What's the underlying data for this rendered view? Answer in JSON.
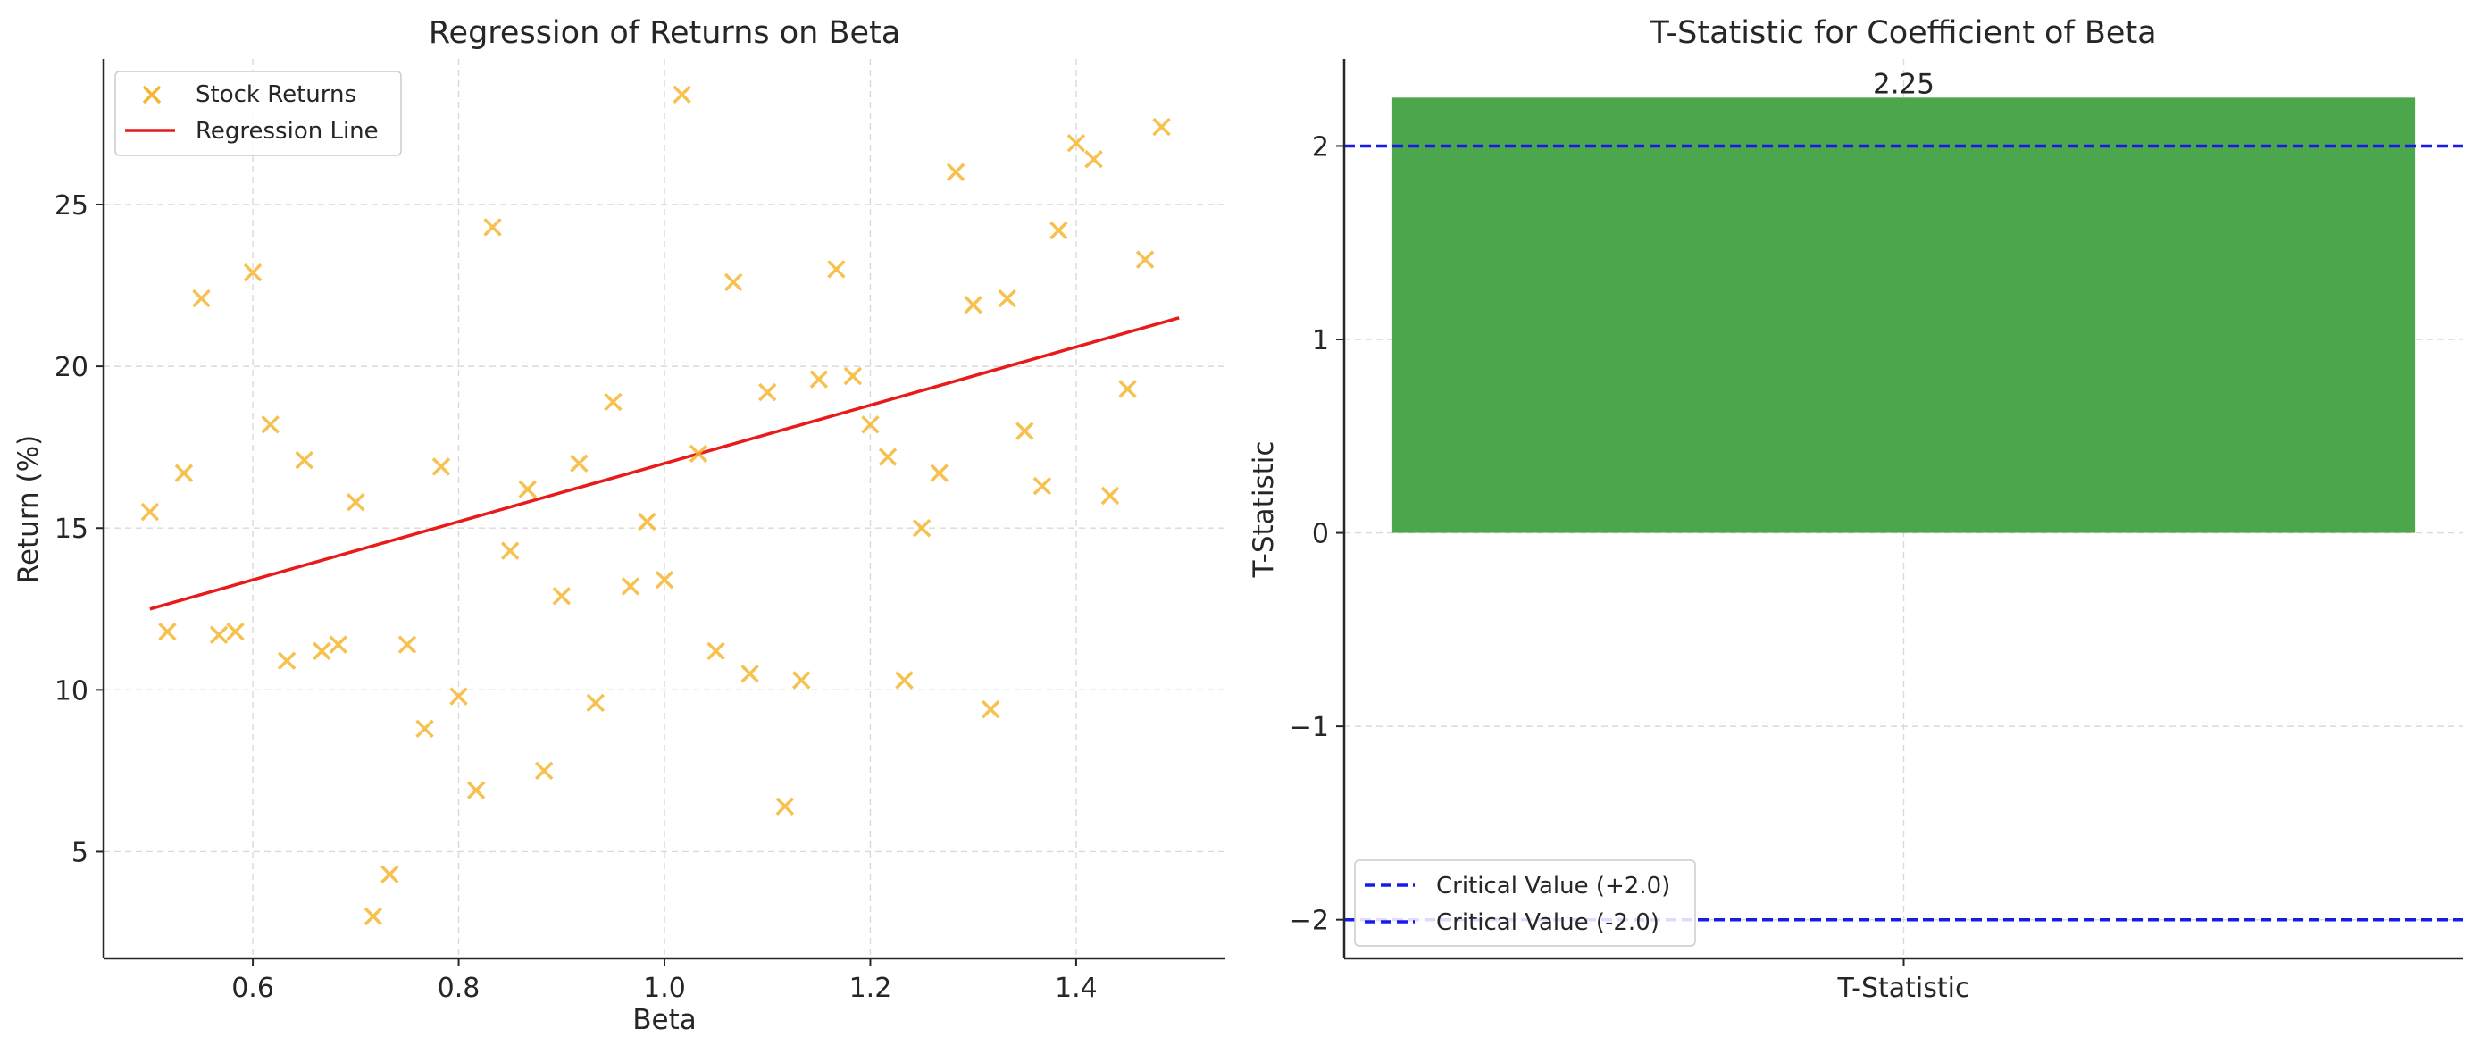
{
  "chart_data": [
    {
      "type": "scatter",
      "title": "Regression of Returns on Beta",
      "xlabel": "Beta",
      "ylabel": "Return (%)",
      "xlim": [
        0.455,
        1.545
      ],
      "ylim": [
        1.7,
        29.5
      ],
      "xticks": [
        0.6,
        0.8,
        1.0,
        1.2,
        1.4
      ],
      "xtick_labels": [
        "0.6",
        "0.8",
        "1.0",
        "1.2",
        "1.4"
      ],
      "yticks": [
        5,
        10,
        15,
        20,
        25
      ],
      "ytick_labels": [
        "5",
        "10",
        "15",
        "20",
        "25"
      ],
      "grid": true,
      "legend_position": "top-left",
      "series": [
        {
          "name": "Stock Returns",
          "kind": "scatter",
          "marker": "x",
          "color": "#f5b731",
          "points": [
            [
              0.5,
              15.5
            ],
            [
              0.517,
              11.8
            ],
            [
              0.533,
              16.7
            ],
            [
              0.55,
              22.1
            ],
            [
              0.567,
              11.7
            ],
            [
              0.583,
              11.8
            ],
            [
              0.6,
              22.9
            ],
            [
              0.617,
              18.2
            ],
            [
              0.633,
              10.9
            ],
            [
              0.65,
              17.1
            ],
            [
              0.667,
              11.2
            ],
            [
              0.683,
              11.4
            ],
            [
              0.7,
              15.8
            ],
            [
              0.717,
              3.0
            ],
            [
              0.733,
              4.3
            ],
            [
              0.75,
              11.4
            ],
            [
              0.767,
              8.8
            ],
            [
              0.783,
              16.9
            ],
            [
              0.8,
              9.8
            ],
            [
              0.817,
              6.9
            ],
            [
              0.833,
              24.3
            ],
            [
              0.85,
              14.3
            ],
            [
              0.867,
              16.2
            ],
            [
              0.883,
              7.5
            ],
            [
              0.9,
              12.9
            ],
            [
              0.917,
              17.0
            ],
            [
              0.933,
              9.6
            ],
            [
              0.95,
              18.9
            ],
            [
              0.967,
              13.2
            ],
            [
              0.983,
              15.2
            ],
            [
              1.0,
              13.4
            ],
            [
              1.017,
              28.4
            ],
            [
              1.033,
              17.3
            ],
            [
              1.05,
              11.2
            ],
            [
              1.067,
              22.6
            ],
            [
              1.083,
              10.5
            ],
            [
              1.1,
              19.2
            ],
            [
              1.117,
              6.4
            ],
            [
              1.133,
              10.3
            ],
            [
              1.15,
              19.6
            ],
            [
              1.167,
              23.0
            ],
            [
              1.183,
              19.7
            ],
            [
              1.2,
              18.2
            ],
            [
              1.217,
              17.2
            ],
            [
              1.233,
              10.3
            ],
            [
              1.25,
              15.0
            ],
            [
              1.267,
              16.7
            ],
            [
              1.283,
              26.0
            ],
            [
              1.3,
              21.9
            ],
            [
              1.317,
              9.4
            ],
            [
              1.333,
              22.1
            ],
            [
              1.35,
              18.0
            ],
            [
              1.367,
              16.3
            ],
            [
              1.383,
              24.2
            ],
            [
              1.4,
              26.9
            ],
            [
              1.417,
              26.4
            ],
            [
              1.433,
              16.0
            ],
            [
              1.45,
              19.3
            ],
            [
              1.467,
              23.3
            ],
            [
              1.483,
              27.4
            ]
          ]
        },
        {
          "name": "Regression Line",
          "kind": "line",
          "color": "#e81a1a",
          "points": [
            [
              0.5,
              12.5
            ],
            [
              1.5,
              21.5
            ]
          ]
        }
      ]
    },
    {
      "type": "bar",
      "title": "T-Statistic for Coefficient of Beta",
      "xlabel": "",
      "ylabel": "T-Statistic",
      "categories": [
        "T-Statistic"
      ],
      "values": [
        2.25
      ],
      "value_labels": [
        "2.25"
      ],
      "bar_color": "#4ca64c",
      "ylim": [
        -2.2,
        2.45
      ],
      "yticks": [
        -2,
        -1,
        0,
        1,
        2
      ],
      "ytick_labels": [
        "−2",
        "−1",
        "0",
        "1",
        "2"
      ],
      "grid": true,
      "legend_position": "bottom-left",
      "reference_lines": [
        {
          "name": "Critical Value (+2.0)",
          "value": 2.0,
          "color": "#1a1aeb",
          "style": "dashed"
        },
        {
          "name": "Critical Value (-2.0)",
          "value": -2.0,
          "color": "#1a1aeb",
          "style": "dashed"
        }
      ]
    }
  ]
}
